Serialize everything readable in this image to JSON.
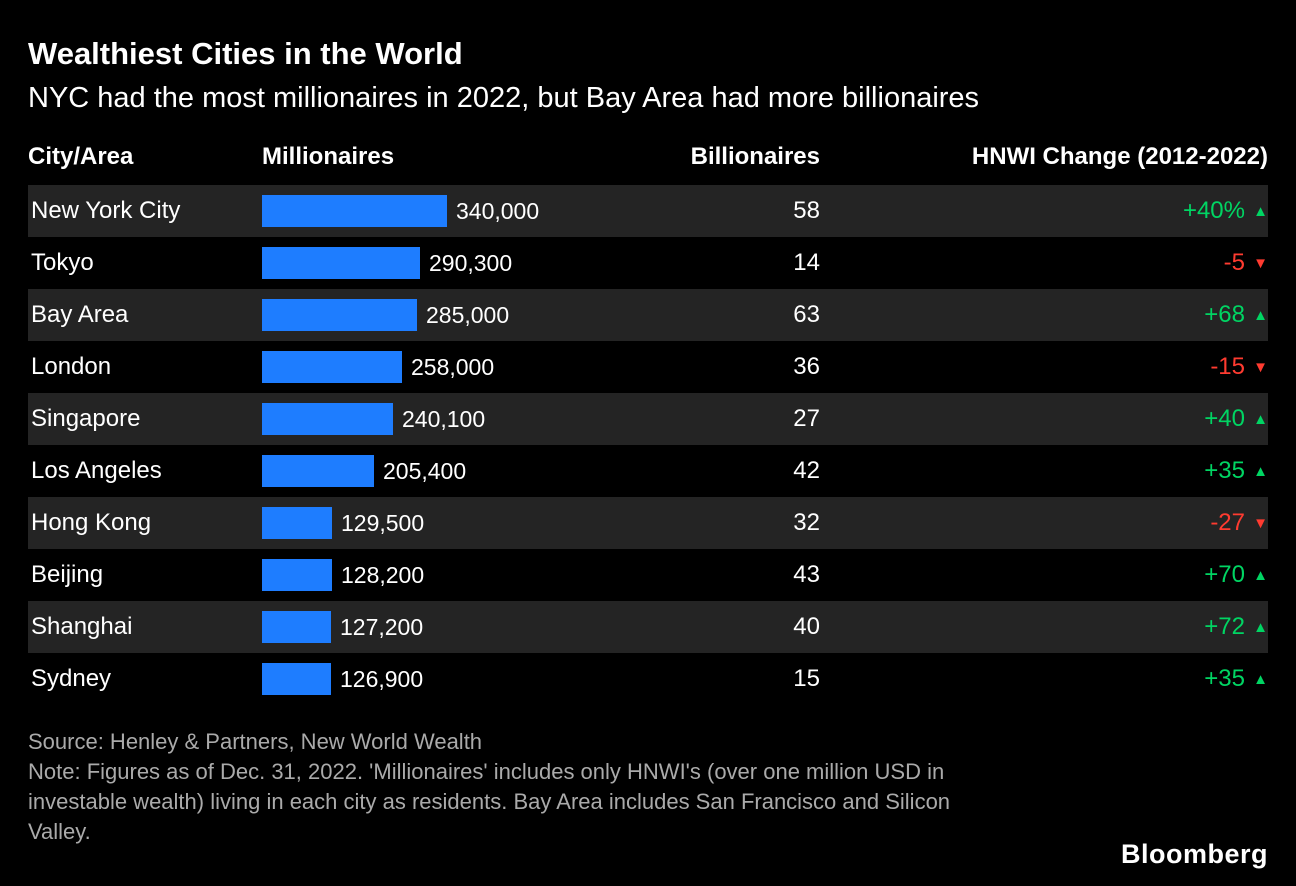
{
  "header": {
    "title": "Wealthiest Cities in the World",
    "subtitle": "NYC had the most millionaires in 2022, but Bay Area had more billionaires"
  },
  "table": {
    "columns": [
      "City/Area",
      "Millionaires",
      "Billionaires",
      "HNWI Change (2012-2022)"
    ]
  },
  "chart_data": {
    "type": "table",
    "title": "Wealthiest Cities in the World",
    "subtitle": "NYC had the most millionaires in 2022, but Bay Area had more billionaires",
    "columns": [
      "City/Area",
      "Millionaires",
      "Billionaires",
      "HNWI Change (2012-2022)"
    ],
    "max_millionaires": 340000,
    "bar_color": "#1e7dff",
    "up_color": "#00d563",
    "down_color": "#ff3b30",
    "row_stripe_color": "#242424",
    "rows": [
      {
        "city": "New York City",
        "millionaires": 340000,
        "millionaires_label": "340,000",
        "billionaires": 58,
        "hnwi_change": "+40%",
        "direction": "up"
      },
      {
        "city": "Tokyo",
        "millionaires": 290300,
        "millionaires_label": "290,300",
        "billionaires": 14,
        "hnwi_change": "-5",
        "direction": "down"
      },
      {
        "city": "Bay Area",
        "millionaires": 285000,
        "millionaires_label": "285,000",
        "billionaires": 63,
        "hnwi_change": "+68",
        "direction": "up"
      },
      {
        "city": "London",
        "millionaires": 258000,
        "millionaires_label": "258,000",
        "billionaires": 36,
        "hnwi_change": "-15",
        "direction": "down"
      },
      {
        "city": "Singapore",
        "millionaires": 240100,
        "millionaires_label": "240,100",
        "billionaires": 27,
        "hnwi_change": "+40",
        "direction": "up"
      },
      {
        "city": "Los Angeles",
        "millionaires": 205400,
        "millionaires_label": "205,400",
        "billionaires": 42,
        "hnwi_change": "+35",
        "direction": "up"
      },
      {
        "city": "Hong Kong",
        "millionaires": 129500,
        "millionaires_label": "129,500",
        "billionaires": 32,
        "hnwi_change": "-27",
        "direction": "down"
      },
      {
        "city": "Beijing",
        "millionaires": 128200,
        "millionaires_label": "128,200",
        "billionaires": 43,
        "hnwi_change": "+70",
        "direction": "up"
      },
      {
        "city": "Shanghai",
        "millionaires": 127200,
        "millionaires_label": "127,200",
        "billionaires": 40,
        "hnwi_change": "+72",
        "direction": "up"
      },
      {
        "city": "Sydney",
        "millionaires": 126900,
        "millionaires_label": "126,900",
        "billionaires": 15,
        "hnwi_change": "+35",
        "direction": "up"
      }
    ]
  },
  "icons": {
    "up_arrow": "▲",
    "down_arrow": "▼"
  },
  "footer": {
    "source": "Source: Henley & Partners, New World Wealth",
    "note": "Note: Figures as of Dec. 31, 2022. 'Millionaires' includes only HNWI's (over one million USD in investable wealth) living in each city as residents. Bay Area includes San Francisco and Silicon Valley.",
    "brand": "Bloomberg"
  }
}
